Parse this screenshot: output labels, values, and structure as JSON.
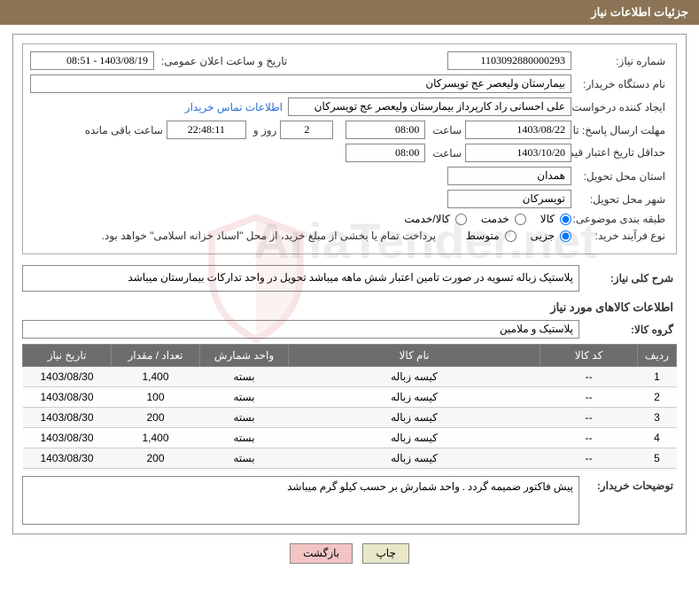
{
  "header": {
    "title": "جزئیات اطلاعات نیاز"
  },
  "fields": {
    "needNumber_label": "شماره نیاز:",
    "needNumber": "1103092880000293",
    "announceDate_label": "تاریخ و ساعت اعلان عمومی:",
    "announceDate": "1403/08/19 - 08:51",
    "buyerOrg_label": "نام دستگاه خریدار:",
    "buyerOrg": "بیمارستان ولیعصر عج تویسرکان",
    "requester_label": "ایجاد کننده درخواست:",
    "requester": "علی احسانی راد کارپرداز بیمارستان ولیعصر عج تویسرکان",
    "buyerContact": "اطلاعات تماس خریدار",
    "deadlineSend_label": "مهلت ارسال پاسخ: تا تاریخ:",
    "deadlineSend_date": "1403/08/22",
    "time_label": "ساعت",
    "deadlineSend_time": "08:00",
    "daysRemaining_label_day": "روز و",
    "daysRemaining_value": "2",
    "countdown": "22:48:11",
    "countdown_label": "ساعت باقی مانده",
    "validPrice_label": "حداقل تاریخ اعتبار قیمت: تا تاریخ:",
    "validPrice_date": "1403/10/20",
    "validPrice_time": "08:00",
    "province_label": "استان محل تحویل:",
    "province": "همدان",
    "city_label": "شهر محل تحویل:",
    "city": "تویسرکان",
    "category_label": "طبقه بندی موضوعی:",
    "category_options": {
      "kala": "کالا",
      "khedmat": "خدمت",
      "kalakhedmat": "کالا/خدمت"
    },
    "processType_label": "نوع فرآیند خرید:",
    "processType_options": {
      "jozei": "جزیی",
      "motavaset": "متوسط"
    },
    "processType_note": "پرداخت تمام یا بخشی از مبلغ خرید، از محل \"اسناد خزانه اسلامی\" خواهد بود.",
    "generalDesc_label": "شرح کلی نیاز:",
    "generalDesc": "پلاستیک زباله تسویه در صورت تامین اعتبار شش ماهه میباشد تحویل در واحد تدارکات بیمارستان میباشد",
    "itemsInfo_title": "اطلاعات کالاهای مورد نیاز",
    "group_label": "گروه کالا:",
    "group": "پلاستیک و ملامین",
    "buyerDesc_label": "توضیحات خریدار:",
    "buyerDesc": "پیش فاکتور ضمیمه گردد . واحد شمارش بر حسب کیلو گرم میباشد"
  },
  "table": {
    "headers": {
      "row": "ردیف",
      "code": "کد کالا",
      "name": "نام کالا",
      "unit": "واحد شمارش",
      "qty": "تعداد / مقدار",
      "date": "تاریخ نیاز"
    },
    "rows": [
      {
        "row": "1",
        "code": "--",
        "name": "کیسه زباله",
        "unit": "بسته",
        "qty": "1,400",
        "date": "1403/08/30"
      },
      {
        "row": "2",
        "code": "--",
        "name": "کیسه زباله",
        "unit": "بسته",
        "qty": "100",
        "date": "1403/08/30"
      },
      {
        "row": "3",
        "code": "--",
        "name": "کیسه زباله",
        "unit": "بسته",
        "qty": "200",
        "date": "1403/08/30"
      },
      {
        "row": "4",
        "code": "--",
        "name": "کیسه زباله",
        "unit": "بسته",
        "qty": "1,400",
        "date": "1403/08/30"
      },
      {
        "row": "5",
        "code": "--",
        "name": "کیسه زباله",
        "unit": "بسته",
        "qty": "200",
        "date": "1403/08/30"
      }
    ]
  },
  "buttons": {
    "print": "چاپ",
    "back": "بازگشت"
  },
  "colors": {
    "header_bg": "#8b7455",
    "header_text": "#ffffff",
    "th_bg": "#6d6d6d",
    "th_text": "#ffffff",
    "border": "#888888",
    "link": "#2a6fd6",
    "btn_print_bg": "#e8e8c8",
    "btn_back_bg": "#f4c4c4"
  },
  "watermark": "AriaTender.net"
}
